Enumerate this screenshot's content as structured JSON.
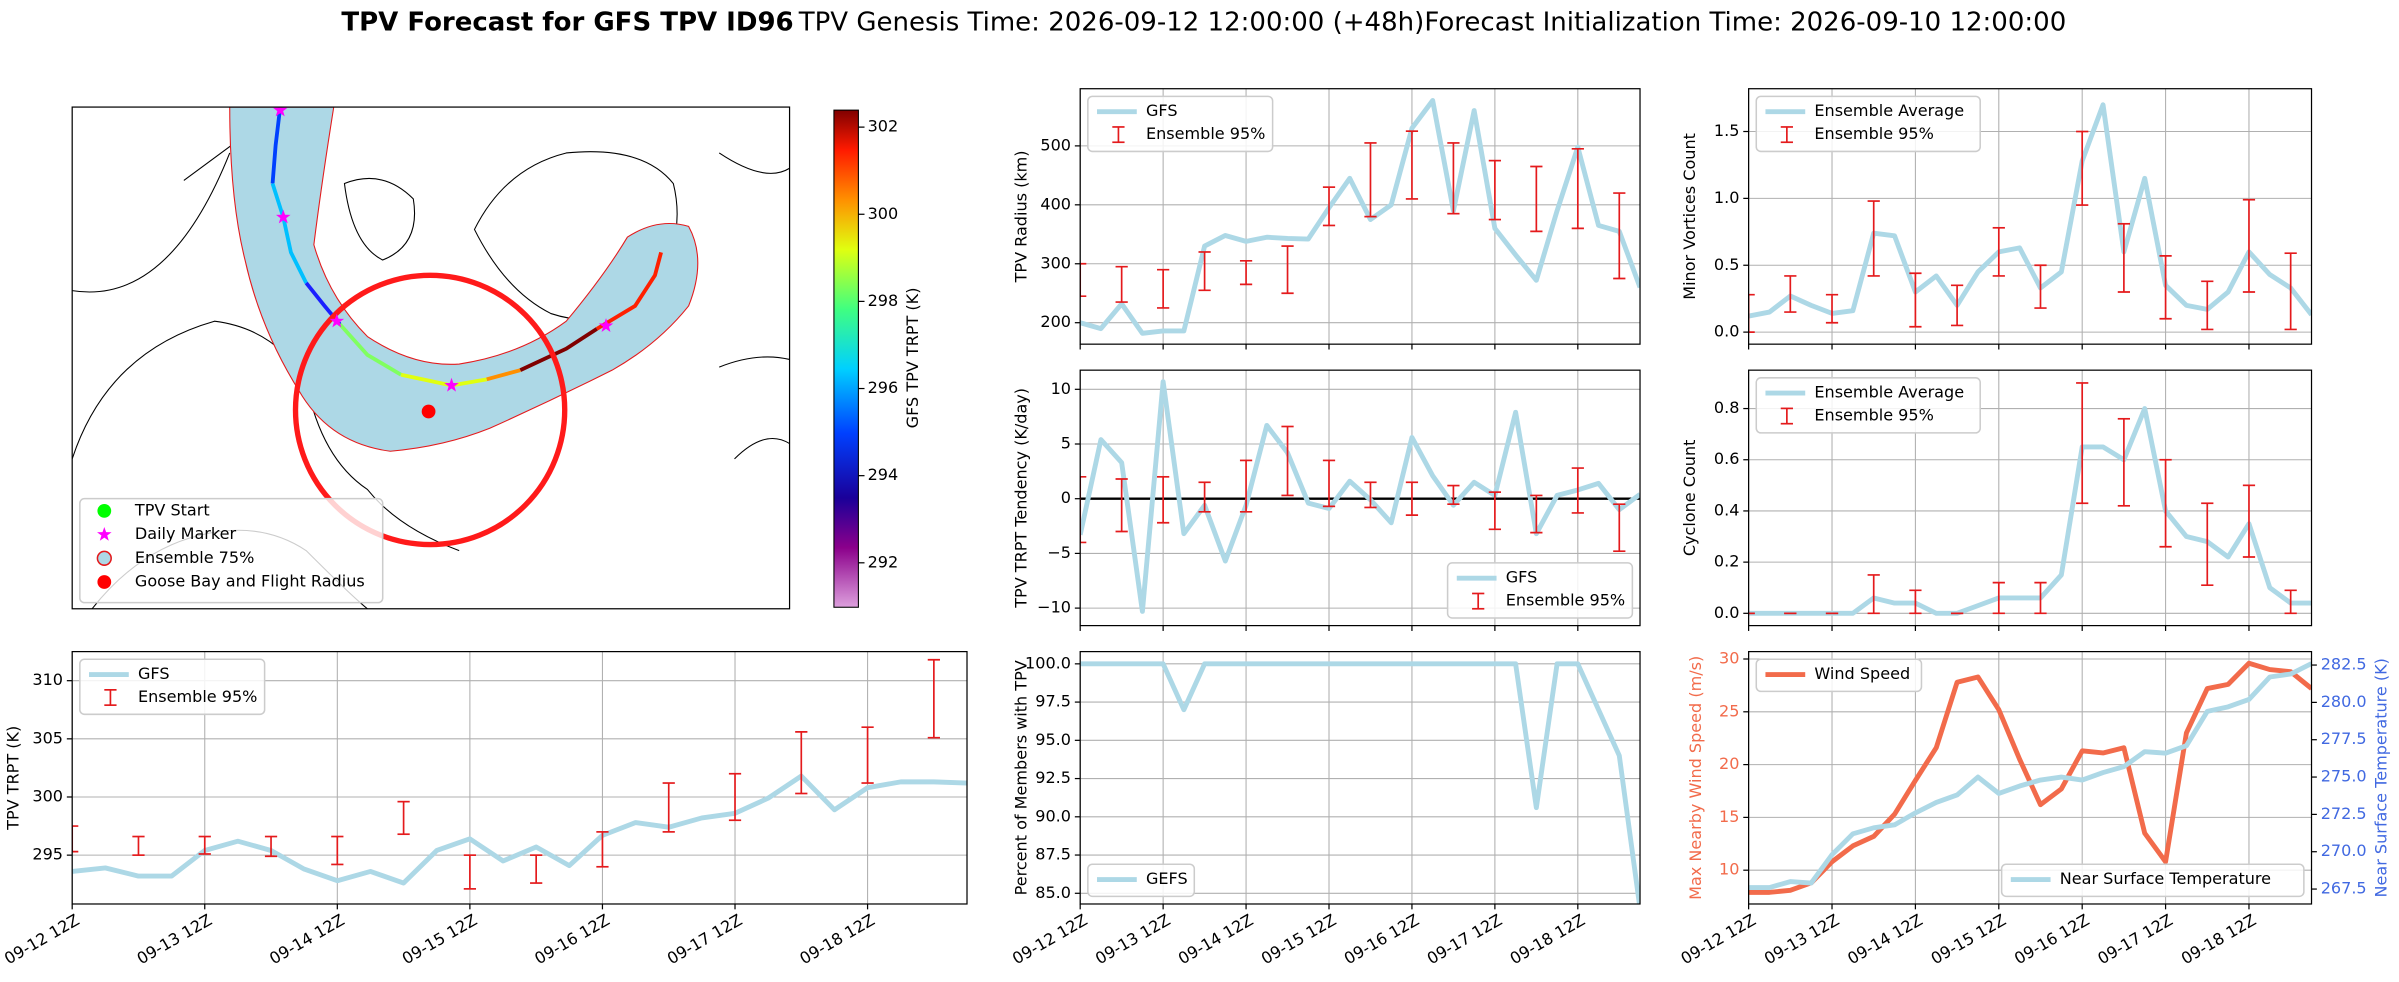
{
  "figure_title": [
    "TPV Forecast for GFS TPV ID96",
    "TPV Genesis Time: 2026-09-12 12:00:00 (+48h)",
    "Forecast Initialization Time: 2026-09-10 12:00:00"
  ],
  "chart_data": [
    {
      "type": "map",
      "colorbar": {
        "label": "GFS TPV TRPT (K)",
        "lim": [
          290.98,
          302.39
        ],
        "ticks": [
          292,
          294,
          296,
          298,
          300,
          302
        ]
      },
      "legend": {
        "entries": [
          "TPV Start",
          "Daily Marker",
          "Ensemble 75%",
          "Goose Bay and Flight Radius"
        ],
        "location": "lower left"
      }
    },
    {
      "type": "line",
      "ylabel": "TPV Radius (km)",
      "xlim": [
        0,
        162
      ],
      "ylim": [
        163.6,
        597
      ],
      "yticks": [
        200,
        300,
        400,
        500
      ],
      "xticks": [
        {
          "value": 0,
          "label": "09-12 12Z"
        },
        {
          "value": 24,
          "label": "09-13 12Z"
        },
        {
          "value": 48,
          "label": "09-14 12Z"
        },
        {
          "value": 72,
          "label": "09-15 12Z"
        },
        {
          "value": 96,
          "label": "09-16 12Z"
        },
        {
          "value": 120,
          "label": "09-17 12Z"
        },
        {
          "value": 144,
          "label": "09-18 12Z"
        }
      ],
      "show_xtick_labels": false,
      "grid": true,
      "legend": "upper left",
      "x": [
        0,
        6,
        12,
        18,
        24,
        30,
        36,
        42,
        48,
        54,
        60,
        66,
        72,
        78,
        84,
        90,
        96,
        102,
        108,
        114,
        120,
        126,
        132,
        138,
        144,
        150,
        156,
        162
      ],
      "series": [
        {
          "name": "GFS",
          "color": "#add8e6",
          "values": [
            200,
            190,
            232,
            182,
            186,
            186,
            330,
            348,
            338,
            345,
            343,
            342,
            395,
            445,
            375,
            400,
            530,
            577,
            390,
            560,
            360,
            315,
            272,
            390,
            498,
            365,
            355,
            260
          ]
        },
        {
          "name": "Ensemble 95%",
          "color": "#e41a1c",
          "type": "errorbar",
          "x": [
            0,
            12,
            24,
            36,
            48,
            60,
            72,
            84,
            96,
            108,
            120,
            132,
            144,
            156
          ],
          "low": [
            245,
            235,
            225,
            255,
            265,
            250,
            365,
            380,
            410,
            385,
            375,
            355,
            360,
            275
          ],
          "high": [
            300,
            295,
            290,
            320,
            305,
            330,
            430,
            505,
            525,
            505,
            475,
            465,
            495,
            420
          ]
        }
      ]
    },
    {
      "type": "line",
      "ylabel": "Minor Vortices Count",
      "xlim": [
        0,
        162
      ],
      "ylim": [
        -0.09,
        1.82
      ],
      "yticks": [
        {
          "value": 0,
          "label": "0.0"
        },
        {
          "value": 0.5,
          "label": "0.5"
        },
        {
          "value": 1,
          "label": "1.0"
        },
        {
          "value": 1.5,
          "label": "1.5"
        }
      ],
      "xticks": [
        0,
        24,
        48,
        72,
        96,
        120,
        144
      ],
      "show_xtick_labels": false,
      "grid": true,
      "legend": "upper left",
      "x": [
        0,
        6,
        12,
        18,
        24,
        30,
        36,
        42,
        48,
        54,
        60,
        66,
        72,
        78,
        84,
        90,
        96,
        102,
        108,
        114,
        120,
        126,
        132,
        138,
        144,
        150,
        156,
        162
      ],
      "series": [
        {
          "name": "Ensemble Average",
          "color": "#add8e6",
          "values": [
            0.12,
            0.15,
            0.27,
            0.2,
            0.14,
            0.16,
            0.74,
            0.72,
            0.3,
            0.42,
            0.2,
            0.45,
            0.6,
            0.63,
            0.33,
            0.45,
            1.28,
            1.7,
            0.6,
            1.15,
            0.35,
            0.2,
            0.17,
            0.3,
            0.6,
            0.43,
            0.33,
            0.13
          ]
        },
        {
          "name": "Ensemble 95%",
          "color": "#e41a1c",
          "type": "errorbar",
          "x": [
            0,
            12,
            24,
            36,
            48,
            60,
            72,
            84,
            96,
            108,
            120,
            132,
            144,
            156
          ],
          "low": [
            0,
            0.15,
            0.07,
            0.42,
            0.04,
            0.05,
            0.42,
            0.18,
            0.95,
            0.3,
            0.1,
            0.02,
            0.3,
            0.02
          ],
          "high": [
            0.28,
            0.42,
            0.28,
            0.98,
            0.44,
            0.35,
            0.78,
            0.5,
            1.5,
            0.81,
            0.57,
            0.38,
            0.99,
            0.59
          ]
        }
      ]
    },
    {
      "type": "line",
      "ylabel": "TPV TRPT Tendency (K/day)",
      "xlim": [
        0,
        162
      ],
      "ylim": [
        -11.6,
        11.75
      ],
      "yticks": [
        {
          "value": -10,
          "label": "−10"
        },
        {
          "value": -5,
          "label": "−5"
        },
        0,
        5,
        10
      ],
      "xticks": [
        0,
        24,
        48,
        72,
        96,
        120,
        144
      ],
      "show_xtick_labels": false,
      "grid": true,
      "zero_line": true,
      "legend": "lower right",
      "x": [
        0,
        6,
        12,
        18,
        24,
        30,
        36,
        42,
        48,
        54,
        60,
        66,
        72,
        78,
        84,
        90,
        96,
        102,
        108,
        114,
        120,
        126,
        132,
        138,
        144,
        150,
        156,
        162
      ],
      "series": [
        {
          "name": "GFS",
          "color": "#add8e6",
          "values": [
            -3.3,
            5.4,
            3.3,
            -10.3,
            10.7,
            -3.2,
            -0.6,
            -5.7,
            -0.6,
            6.7,
            4.2,
            -0.4,
            -0.9,
            1.6,
            -0.1,
            -2.2,
            5.6,
            2.1,
            -0.6,
            1.5,
            0.3,
            7.9,
            -3.2,
            0.3,
            0.8,
            1.4,
            -1.0,
            0.4
          ]
        },
        {
          "name": "Ensemble 95%",
          "color": "#e41a1c",
          "type": "errorbar",
          "x": [
            0,
            12,
            24,
            36,
            48,
            60,
            72,
            84,
            96,
            108,
            120,
            132,
            144,
            156
          ],
          "low": [
            -4,
            -3,
            -2.2,
            -1.2,
            -1.2,
            0.3,
            -0.7,
            -0.8,
            -1.5,
            -0.5,
            -2.8,
            -3.1,
            -1.3,
            -4.8
          ],
          "high": [
            2,
            1.8,
            2,
            1.5,
            3.5,
            6.6,
            3.5,
            1.5,
            1.5,
            1.2,
            0.6,
            0.3,
            2.8,
            -0.5
          ]
        }
      ]
    },
    {
      "type": "line",
      "ylabel": "Cyclone Count",
      "xlim": [
        0,
        162
      ],
      "ylim": [
        -0.048,
        0.95
      ],
      "yticks": [
        {
          "value": 0,
          "label": "0.0"
        },
        0.2,
        0.4,
        0.6,
        0.8
      ],
      "xticks": [
        0,
        24,
        48,
        72,
        96,
        120,
        144
      ],
      "show_xtick_labels": false,
      "grid": true,
      "legend": "upper left",
      "x": [
        0,
        6,
        12,
        18,
        24,
        30,
        36,
        42,
        48,
        54,
        60,
        66,
        72,
        78,
        84,
        90,
        96,
        102,
        108,
        114,
        120,
        126,
        132,
        138,
        144,
        150,
        156,
        162
      ],
      "series": [
        {
          "name": "Ensemble Average",
          "color": "#add8e6",
          "values": [
            0,
            0,
            0,
            0,
            0,
            0,
            0.06,
            0.04,
            0.04,
            0,
            0,
            0.03,
            0.06,
            0.06,
            0.06,
            0.15,
            0.65,
            0.65,
            0.6,
            0.8,
            0.4,
            0.3,
            0.28,
            0.22,
            0.35,
            0.1,
            0.04,
            0.04
          ]
        },
        {
          "name": "Ensemble 95%",
          "color": "#e41a1c",
          "type": "errorbar",
          "x": [
            0,
            12,
            24,
            36,
            48,
            60,
            72,
            84,
            96,
            108,
            120,
            132,
            144,
            156
          ],
          "low": [
            0,
            0,
            0,
            0,
            0,
            0,
            0,
            0,
            0.43,
            0.42,
            0.26,
            0.11,
            0.22,
            0
          ],
          "high": [
            0,
            0,
            0,
            0.15,
            0.09,
            0,
            0.12,
            0.12,
            0.9,
            0.76,
            0.6,
            0.43,
            0.5,
            0.09
          ]
        }
      ]
    },
    {
      "type": "line",
      "ylabel": "TPV TRPT (K)",
      "xlim": [
        0,
        162
      ],
      "ylim": [
        290.8,
        312.5
      ],
      "yticks": [
        295,
        300,
        305,
        310
      ],
      "xticks": [
        {
          "value": 0,
          "label": "09-12 12Z"
        },
        {
          "value": 24,
          "label": "09-13 12Z"
        },
        {
          "value": 48,
          "label": "09-14 12Z"
        },
        {
          "value": 72,
          "label": "09-15 12Z"
        },
        {
          "value": 96,
          "label": "09-16 12Z"
        },
        {
          "value": 120,
          "label": "09-17 12Z"
        },
        {
          "value": 144,
          "label": "09-18 12Z"
        }
      ],
      "grid": true,
      "legend": "upper left",
      "x": [
        0,
        6,
        12,
        18,
        24,
        30,
        36,
        42,
        48,
        54,
        60,
        66,
        72,
        78,
        84,
        90,
        96,
        102,
        108,
        114,
        120,
        126,
        132,
        138,
        144,
        150,
        156,
        162
      ],
      "series": [
        {
          "name": "GFS",
          "color": "#add8e6",
          "values": [
            293.6,
            293.9,
            293.2,
            293.2,
            295.4,
            296.2,
            295.4,
            293.8,
            292.8,
            293.6,
            292.6,
            295.4,
            296.4,
            294.5,
            295.7,
            294.1,
            296.7,
            297.8,
            297.4,
            298.2,
            298.6,
            299.9,
            301.8,
            298.9,
            300.8,
            301.3,
            301.3,
            301.2
          ]
        },
        {
          "name": "Ensemble 95%",
          "color": "#e41a1c",
          "type": "errorbar",
          "x": [
            0,
            12,
            24,
            36,
            48,
            60,
            72,
            84,
            96,
            108,
            120,
            132,
            144,
            156
          ],
          "low": [
            295.3,
            295,
            295.1,
            294.9,
            294.2,
            296.8,
            292.1,
            292.6,
            294,
            297,
            298,
            300.3,
            301.2,
            305.1
          ],
          "high": [
            297.5,
            296.6,
            296.6,
            296.6,
            296.6,
            299.6,
            295,
            295,
            297,
            301.2,
            302,
            305.6,
            306,
            311.8
          ]
        }
      ]
    },
    {
      "type": "line",
      "ylabel": "Percent of Members with TPV",
      "xlim": [
        0,
        162
      ],
      "ylim": [
        84.3,
        100.8
      ],
      "yticks": [
        {
          "value": 85,
          "label": "85.0"
        },
        87.5,
        {
          "value": 90,
          "label": "90.0"
        },
        92.5,
        {
          "value": 95,
          "label": "95.0"
        },
        97.5,
        {
          "value": 100,
          "label": "100.0"
        }
      ],
      "xticks": [
        {
          "value": 0,
          "label": "09-12 12Z"
        },
        {
          "value": 24,
          "label": "09-13 12Z"
        },
        {
          "value": 48,
          "label": "09-14 12Z"
        },
        {
          "value": 72,
          "label": "09-15 12Z"
        },
        {
          "value": 96,
          "label": "09-16 12Z"
        },
        {
          "value": 120,
          "label": "09-17 12Z"
        },
        {
          "value": 144,
          "label": "09-18 12Z"
        }
      ],
      "grid": true,
      "legend": "lower left",
      "x": [
        0,
        6,
        12,
        18,
        24,
        30,
        36,
        42,
        48,
        54,
        60,
        66,
        72,
        78,
        84,
        90,
        96,
        102,
        108,
        114,
        120,
        126,
        132,
        138,
        144,
        150,
        156,
        162
      ],
      "series": [
        {
          "name": "GEFS",
          "color": "#add8e6",
          "values": [
            100,
            100,
            100,
            100,
            100,
            97,
            100,
            100,
            100,
            100,
            100,
            100,
            100,
            100,
            100,
            100,
            100,
            100,
            100,
            100,
            100,
            100,
            90.6,
            100,
            100,
            97,
            94,
            84
          ]
        }
      ]
    },
    {
      "type": "line",
      "ylabel": "Max Nearby Wind Speed (m/s)",
      "ylabel_color": "#f26b4b",
      "y2label": "Near Surface Temperature (K)",
      "y2label_color": "#4169e1",
      "xlim": [
        0,
        162
      ],
      "ylim": [
        6.8,
        30.7
      ],
      "yticks": [
        10,
        15,
        20,
        25,
        30
      ],
      "y2lim": [
        266.5,
        283.4
      ],
      "y2ticks": [
        267.5,
        {
          "value": 270,
          "label": "270.0"
        },
        272.5,
        {
          "value": 275,
          "label": "275.0"
        },
        277.5,
        {
          "value": 280,
          "label": "280.0"
        },
        282.5
      ],
      "xticks": [
        {
          "value": 0,
          "label": "09-12 12Z"
        },
        {
          "value": 24,
          "label": "09-13 12Z"
        },
        {
          "value": 48,
          "label": "09-14 12Z"
        },
        {
          "value": 72,
          "label": "09-15 12Z"
        },
        {
          "value": 96,
          "label": "09-16 12Z"
        },
        {
          "value": 120,
          "label": "09-17 12Z"
        },
        {
          "value": 144,
          "label": "09-18 12Z"
        }
      ],
      "grid": true,
      "x": [
        0,
        6,
        12,
        18,
        24,
        30,
        36,
        42,
        48,
        54,
        60,
        66,
        72,
        78,
        84,
        90,
        96,
        102,
        108,
        114,
        120,
        126,
        132,
        138,
        144,
        150,
        156,
        162
      ],
      "series": [
        {
          "name": "Wind Speed",
          "color": "#f26b4b",
          "legend": "upper left",
          "values": [
            7.9,
            7.9,
            8.1,
            8.8,
            10.8,
            12.3,
            13.2,
            15.3,
            18.5,
            21.6,
            27.8,
            28.3,
            25.2,
            20.5,
            16.2,
            17.7,
            21.3,
            21.1,
            21.6,
            13.5,
            10.8,
            23.0,
            27.2,
            27.6,
            29.6,
            29.0,
            28.8,
            27.2
          ]
        },
        {
          "name": "Near Surface Temperature",
          "color": "#add8e6",
          "axis": "y2",
          "legend": "lower right",
          "values": [
            267.6,
            267.6,
            268.0,
            267.9,
            269.8,
            271.2,
            271.6,
            271.8,
            272.6,
            273.3,
            273.8,
            275.0,
            273.9,
            274.4,
            274.8,
            275.0,
            274.8,
            275.3,
            275.7,
            276.7,
            276.6,
            277.1,
            279.4,
            279.7,
            280.2,
            281.7,
            281.9,
            282.6
          ]
        }
      ]
    }
  ]
}
